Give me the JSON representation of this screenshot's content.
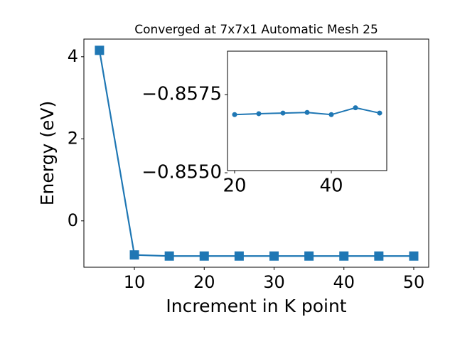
{
  "chart_data": [
    {
      "type": "line",
      "title": "Converged at 7x7x1 Automatic Mesh 25",
      "x_label": "Increment in K point",
      "y_label": "Energy (eV)",
      "x": [
        5,
        10,
        15,
        20,
        25,
        30,
        35,
        40,
        45,
        50
      ],
      "series": [
        {
          "color": "#1f77b4",
          "marker": "square",
          "values": [
            4.156,
            -0.83,
            -0.8569,
            -0.85686,
            -0.85689,
            -0.85691,
            -0.85693,
            -0.85686,
            -0.85708,
            -0.85691
          ]
        }
      ],
      "xlim": [
        2.77,
        52.14
      ],
      "ylim": [
        -1.13,
        4.43
      ],
      "xticks": [
        10,
        20,
        30,
        40,
        50
      ],
      "yticks": [
        0,
        2,
        4
      ]
    },
    {
      "type": "line",
      "x": [
        20,
        25,
        30,
        35,
        40,
        45,
        50
      ],
      "series": [
        {
          "color": "#1f77b4",
          "marker": "circle",
          "values": [
            -0.85686,
            -0.85689,
            -0.85691,
            -0.85693,
            -0.85686,
            -0.85708,
            -0.85691
          ]
        }
      ],
      "xlim": [
        18.53,
        51.47
      ],
      "ylim": [
        -0.85507,
        -0.85889
      ],
      "xticks": [
        20,
        40
      ],
      "yticks": [
        {
          "value": -0.8575,
          "label": "−0.8575"
        },
        {
          "value": -0.855,
          "label": "−0.8550"
        }
      ]
    }
  ]
}
